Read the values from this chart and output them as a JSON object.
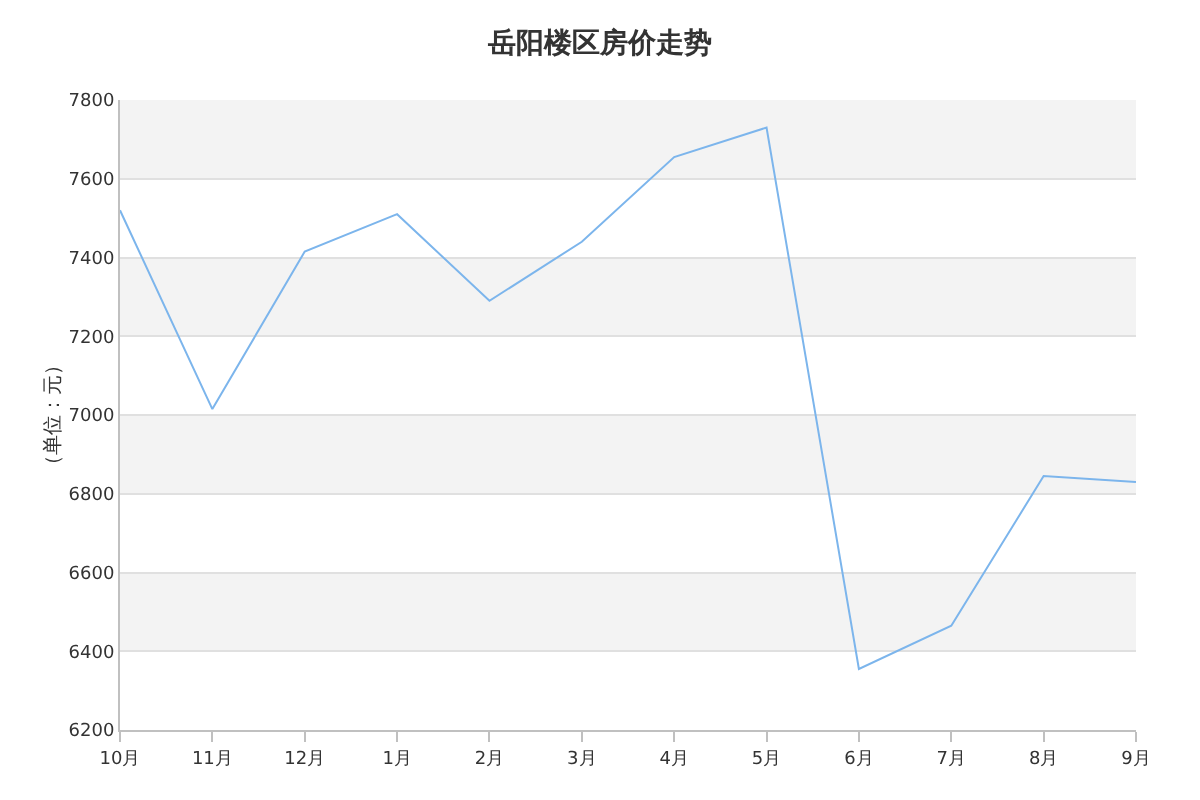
{
  "chart_data": {
    "type": "line",
    "title": "岳阳楼区房价走势",
    "ylabel": "（单位：元）",
    "categories": [
      "10月",
      "11月",
      "12月",
      "1月",
      "2月",
      "3月",
      "4月",
      "5月",
      "6月",
      "7月",
      "8月",
      "9月"
    ],
    "series": [
      {
        "color": "#7cb5ec",
        "values": [
          7520,
          7015,
          7415,
          7510,
          7290,
          7440,
          7655,
          7730,
          6355,
          6465,
          6845,
          6830
        ]
      }
    ],
    "ylim": [
      6200,
      7800
    ],
    "yticks": [
      6200,
      6400,
      6600,
      6800,
      7000,
      7200,
      7400,
      7600,
      7800
    ],
    "grid": "y",
    "marker": "none",
    "line_style": "solid"
  }
}
